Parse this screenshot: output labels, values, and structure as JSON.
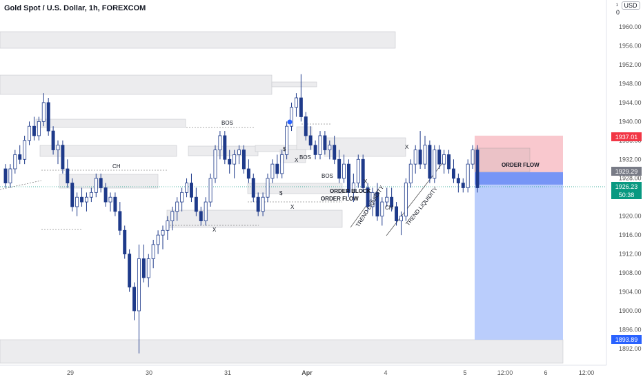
{
  "header": {
    "title": "Gold Spot / U.S. Dollar, 1h, FOREXCOM",
    "currency_prefix": "¹",
    "currency": "USD",
    "currency_suffix": "0"
  },
  "chart_data": {
    "type": "candlestick",
    "y_ticks": [
      1892,
      1896,
      1900,
      1904,
      1908,
      1912,
      1916,
      1920,
      1924,
      1928,
      1932,
      1936,
      1940,
      1944,
      1948,
      1952,
      1956,
      1960
    ],
    "x_ticks": [
      "29",
      "30",
      "31",
      "Apr",
      "4",
      "5",
      "12:00",
      "6",
      "12:00"
    ],
    "price_labels": [
      {
        "value": "1937.01",
        "color": "#f23645"
      },
      {
        "value": "1929.29",
        "color": "#787b86"
      },
      {
        "value": "1926.23",
        "color": "#089981"
      },
      {
        "value": "50:38",
        "color": "#089981"
      },
      {
        "value": "1893.89",
        "color": "#2962ff"
      }
    ],
    "annotations": [
      "CH",
      "BOS",
      "X",
      "X",
      "BOS",
      "BOS",
      "$",
      "X",
      "$",
      "ORDER BLOCK",
      "ORDER FLOW",
      "X",
      "CH",
      "TREND LIQUIDITY",
      "TREND LIQUIDITY",
      "X",
      "ORDER FLOW"
    ],
    "short_position": {
      "entry": 1929.29,
      "stop": 1937.01,
      "target": 1893.89
    },
    "colors": {
      "up": "#ffffff",
      "down": "#1e3a8a",
      "stop_zone": "#f7b5bd",
      "target_zone": "#aec4fb"
    },
    "candles": [
      [
        1930.0,
        1931.0,
        1926.0,
        1927.0
      ],
      [
        1927.0,
        1931.0,
        1926.0,
        1930.0
      ],
      [
        1930.0,
        1934.0,
        1929.0,
        1933.0
      ],
      [
        1933.0,
        1935.0,
        1931.0,
        1932.0
      ],
      [
        1932.0,
        1937.0,
        1931.0,
        1936.0
      ],
      [
        1936.0,
        1940.0,
        1935.0,
        1939.0
      ],
      [
        1939.0,
        1941.0,
        1936.0,
        1937.0
      ],
      [
        1937.0,
        1941.0,
        1936.0,
        1940.0
      ],
      [
        1940.0,
        1946.0,
        1939.0,
        1944.0
      ],
      [
        1944.0,
        1945.0,
        1937.0,
        1938.0
      ],
      [
        1938.0,
        1939.0,
        1933.0,
        1934.0
      ],
      [
        1934.0,
        1936.0,
        1931.0,
        1935.0
      ],
      [
        1935.0,
        1936.0,
        1929.0,
        1930.0
      ],
      [
        1930.0,
        1932.0,
        1926.0,
        1927.0
      ],
      [
        1927.0,
        1928.0,
        1921.0,
        1922.0
      ],
      [
        1922.0,
        1925.0,
        1920.0,
        1924.0
      ],
      [
        1924.0,
        1926.0,
        1922.0,
        1923.0
      ],
      [
        1923.0,
        1925.0,
        1921.0,
        1924.0
      ],
      [
        1924.0,
        1926.0,
        1923.0,
        1925.0
      ],
      [
        1925.0,
        1929.0,
        1924.0,
        1928.0
      ],
      [
        1928.0,
        1929.0,
        1925.0,
        1926.0
      ],
      [
        1926.0,
        1927.0,
        1922.0,
        1923.0
      ],
      [
        1923.0,
        1925.0,
        1921.0,
        1924.0
      ],
      [
        1924.0,
        1925.0,
        1920.0,
        1921.0
      ],
      [
        1921.0,
        1923.0,
        1916.0,
        1917.0
      ],
      [
        1917.0,
        1918.0,
        1911.0,
        1912.0
      ],
      [
        1912.0,
        1913.0,
        1904.0,
        1905.0
      ],
      [
        1905.0,
        1906.0,
        1898.0,
        1900.0
      ],
      [
        1900.0,
        1914.0,
        1891.0,
        1911.0
      ],
      [
        1911.0,
        1914.0,
        1906.0,
        1907.0
      ],
      [
        1907.0,
        1912.0,
        1905.0,
        1911.0
      ],
      [
        1911.0,
        1915.0,
        1909.0,
        1914.0
      ],
      [
        1914.0,
        1917.0,
        1912.0,
        1916.0
      ],
      [
        1916.0,
        1918.0,
        1913.0,
        1917.0
      ],
      [
        1917.0,
        1920.0,
        1915.0,
        1919.0
      ],
      [
        1919.0,
        1922.0,
        1917.0,
        1921.0
      ],
      [
        1921.0,
        1924.0,
        1919.0,
        1923.0
      ],
      [
        1923.0,
        1926.0,
        1921.0,
        1925.0
      ],
      [
        1925.0,
        1928.0,
        1924.0,
        1927.0
      ],
      [
        1927.0,
        1929.0,
        1923.0,
        1924.0
      ],
      [
        1924.0,
        1926.0,
        1920.0,
        1921.0
      ],
      [
        1921.0,
        1922.0,
        1918.0,
        1919.0
      ],
      [
        1919.0,
        1924.0,
        1918.0,
        1923.0
      ],
      [
        1923.0,
        1929.0,
        1922.0,
        1928.0
      ],
      [
        1928.0,
        1935.0,
        1927.0,
        1934.0
      ],
      [
        1934.0,
        1938.0,
        1932.0,
        1937.0
      ],
      [
        1937.0,
        1938.0,
        1931.0,
        1932.0
      ],
      [
        1932.0,
        1934.0,
        1929.0,
        1931.0
      ],
      [
        1931.0,
        1934.0,
        1928.0,
        1933.0
      ],
      [
        1933.0,
        1935.0,
        1931.0,
        1934.0
      ],
      [
        1934.0,
        1935.0,
        1929.0,
        1930.0
      ],
      [
        1930.0,
        1932.0,
        1927.0,
        1928.0
      ],
      [
        1928.0,
        1929.0,
        1923.0,
        1924.0
      ],
      [
        1924.0,
        1925.0,
        1920.0,
        1921.0
      ],
      [
        1921.0,
        1925.0,
        1920.0,
        1924.0
      ],
      [
        1924.0,
        1929.0,
        1923.0,
        1928.0
      ],
      [
        1928.0,
        1932.0,
        1927.0,
        1931.0
      ],
      [
        1931.0,
        1933.0,
        1928.0,
        1929.0
      ],
      [
        1929.0,
        1934.0,
        1928.0,
        1933.0
      ],
      [
        1933.0,
        1940.0,
        1932.0,
        1939.0
      ],
      [
        1939.0,
        1944.0,
        1938.0,
        1943.0
      ],
      [
        1943.0,
        1946.0,
        1941.0,
        1945.0
      ],
      [
        1945.0,
        1950.0,
        1940.0,
        1941.0
      ],
      [
        1941.0,
        1942.0,
        1936.0,
        1937.0
      ],
      [
        1937.0,
        1939.0,
        1934.0,
        1935.0
      ],
      [
        1935.0,
        1936.0,
        1932.0,
        1933.0
      ],
      [
        1933.0,
        1938.0,
        1932.0,
        1937.0
      ],
      [
        1937.0,
        1938.0,
        1933.0,
        1934.0
      ],
      [
        1934.0,
        1936.0,
        1932.0,
        1935.0
      ],
      [
        1935.0,
        1937.0,
        1931.0,
        1932.0
      ],
      [
        1932.0,
        1934.0,
        1927.0,
        1928.0
      ],
      [
        1928.0,
        1933.0,
        1927.0,
        1931.0
      ],
      [
        1931.0,
        1932.0,
        1924.0,
        1925.0
      ],
      [
        1925.0,
        1929.0,
        1923.0,
        1927.0
      ],
      [
        1927.0,
        1933.0,
        1926.0,
        1932.0
      ],
      [
        1932.0,
        1933.0,
        1925.0,
        1926.0
      ],
      [
        1926.0,
        1927.0,
        1921.0,
        1922.0
      ],
      [
        1922.0,
        1926.0,
        1920.0,
        1925.0
      ],
      [
        1925.0,
        1927.0,
        1919.0,
        1920.0
      ],
      [
        1920.0,
        1924.0,
        1918.0,
        1923.0
      ],
      [
        1923.0,
        1926.0,
        1922.0,
        1924.0
      ],
      [
        1924.0,
        1926.0,
        1921.0,
        1922.0
      ],
      [
        1922.0,
        1923.0,
        1918.0,
        1919.0
      ],
      [
        1919.0,
        1921.0,
        1916.0,
        1920.0
      ],
      [
        1920.0,
        1928.0,
        1919.0,
        1927.0
      ],
      [
        1927.0,
        1932.0,
        1926.0,
        1931.0
      ],
      [
        1931.0,
        1935.0,
        1929.0,
        1934.0
      ],
      [
        1934.0,
        1938.0,
        1930.0,
        1931.0
      ],
      [
        1931.0,
        1937.0,
        1930.0,
        1935.0
      ],
      [
        1935.0,
        1936.0,
        1927.0,
        1928.0
      ],
      [
        1928.0,
        1935.0,
        1927.0,
        1934.0
      ],
      [
        1934.0,
        1935.0,
        1930.0,
        1931.0
      ],
      [
        1931.0,
        1934.0,
        1929.0,
        1933.0
      ],
      [
        1933.0,
        1934.0,
        1929.0,
        1930.0
      ],
      [
        1930.0,
        1932.0,
        1927.0,
        1928.0
      ],
      [
        1928.0,
        1929.0,
        1925.0,
        1927.0
      ],
      [
        1927.0,
        1928.0,
        1925.0,
        1926.0
      ],
      [
        1926.0,
        1932.0,
        1925.0,
        1931.0
      ],
      [
        1931.0,
        1935.0,
        1930.0,
        1934.0
      ],
      [
        1934.0,
        1935.0,
        1925.0,
        1926.0
      ]
    ]
  }
}
